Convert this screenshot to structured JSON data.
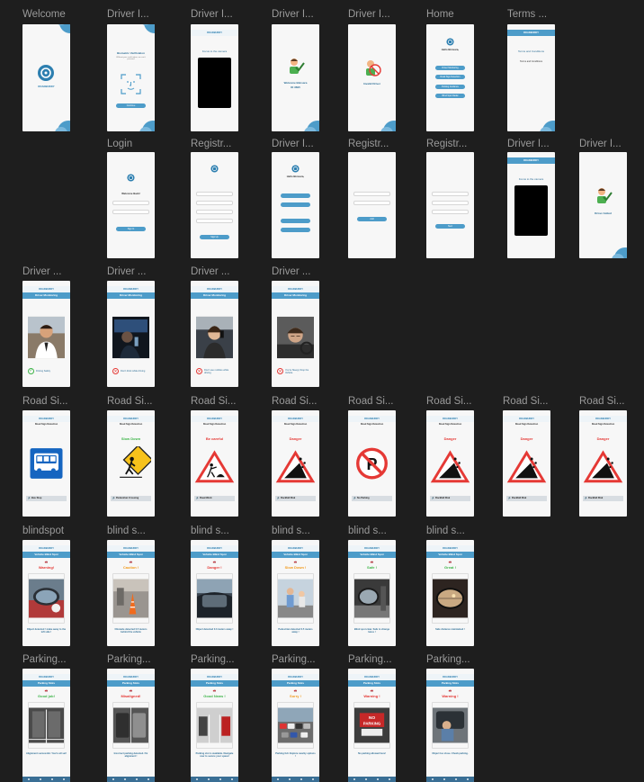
{
  "colors": {
    "canvas": "#1e1e1e",
    "primary": "#4d9cc9",
    "danger": "#e53935",
    "warning": "#f29b1d",
    "success": "#3fb54a",
    "label": "#9a9a9a"
  },
  "app": {
    "brand": "ROADBUDDY",
    "time": "9:41"
  },
  "labels": {
    "welcome": "Welcome",
    "driver": "Driver I...",
    "home": "Home",
    "terms": "Terms ...",
    "login": "Login",
    "registr": "Registr...",
    "driver_m": "Driver ...",
    "road": "Road Si...",
    "blindspot": "blindspot",
    "blind_s": "blind s...",
    "parking": "Parking..."
  },
  "screens": {
    "welcome_brand": "ROADBUDDY",
    "verif_title": "Biometric Verification",
    "verif_sub": "Without your verification, we can't proceed",
    "verif_btn": "Continue",
    "focus": "Focus to the camera",
    "welcome_driver": "Welcome Bimsara",
    "welcome_id": "ID 3695",
    "invalid": "Invalid Driver",
    "home_hello": "Hello Bimsara,",
    "home_btn1": "Driver Monitoring",
    "home_btn2": "Road Sign Detection",
    "home_btn3": "Parking Guidance",
    "home_btn4": "Blind Spot Radar",
    "terms_title": "Terms and Conditions",
    "terms_body": "Terms and Conditions",
    "login_title": "Welcome Back!",
    "login_btn": "Sign In",
    "reg_btn": "Sign Up",
    "add_btn": "Add",
    "next_btn": "Next",
    "driver_added": "Driver Added",
    "dm_title": "Driver Monitoring",
    "rs_title": "Road Sign Detection",
    "bs_title": "Vehicle Blind Spot",
    "pk_title": "Parking Slots"
  },
  "dm": [
    {
      "text": "Driving Safely",
      "ok": true
    },
    {
      "text": "Don't drink while driving",
      "ok": false
    },
    {
      "text": "Don't use mobiles while driving",
      "ok": false
    },
    {
      "text": "You're Sleepy Stop the Vehicle",
      "ok": false
    }
  ],
  "road": [
    {
      "alert": "",
      "audio": "Bus Stop"
    },
    {
      "alert": "Slow Down",
      "audio": "Pedestrian Crossing"
    },
    {
      "alert": "Be careful",
      "audio": "Road Work"
    },
    {
      "alert": "Danger",
      "audio": "Rockfall Risk"
    },
    {
      "alert": "",
      "audio": "No Parking"
    },
    {
      "alert": "Danger",
      "audio": "Rockfall Risk"
    },
    {
      "alert": "Danger",
      "audio": "Rockfall Risk"
    },
    {
      "alert": "Danger",
      "audio": "Rockfall Risk"
    }
  ],
  "blind": [
    {
      "alert": "Warning!",
      "caption": "Object detected ! make away to the left side !"
    },
    {
      "alert": "Caution !",
      "caption": "Obstacle detected 0.5 meters behind the vehicle"
    },
    {
      "alert": "Danger !",
      "caption": "Object detected 0.3 meters away !"
    },
    {
      "alert": "Slow Down !",
      "caption": "Pedestrian detected 0.5 meters away !"
    },
    {
      "alert": "Safe !",
      "caption": "Blind spot clear. Safe to change lanes !"
    },
    {
      "alert": "Great !",
      "caption": "Safe distance maintained !"
    }
  ],
  "parking": [
    {
      "alert": "Good job!",
      "caption": "Alignment successful. You're all set!"
    },
    {
      "alert": "Misaligned!",
      "caption": "Incorrect parking detected. Fix alignment !"
    },
    {
      "alert": "Good News !",
      "caption": "Parking slot is available. Navigate now to secure your space!"
    },
    {
      "alert": "Sorry !",
      "caption": "Parking full. Explore nearby options !"
    },
    {
      "alert": "Warning !",
      "caption": "No parking allowed here!"
    },
    {
      "alert": "Warning !",
      "caption": "Object too close. Check parking."
    }
  ]
}
